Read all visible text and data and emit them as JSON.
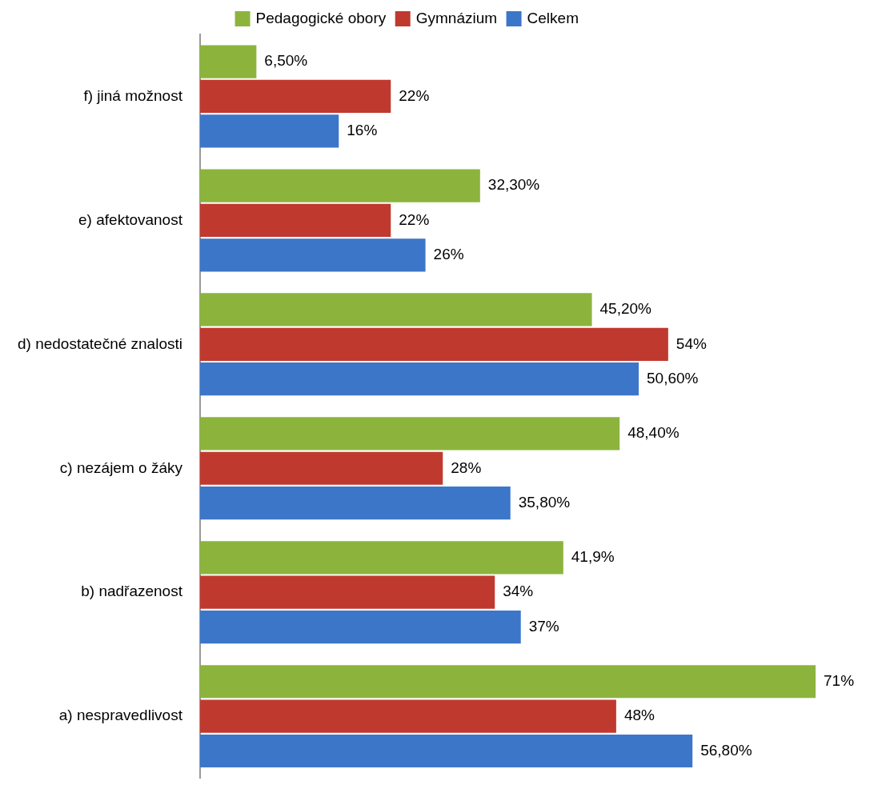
{
  "chart_data": {
    "type": "bar",
    "orientation": "horizontal",
    "categories": [
      "f) jiná možnost",
      "e) afektovanost",
      "d) nedostatečné znalosti",
      "c) nezájem o žáky",
      "b) nadřazenost",
      "a) nespravedlivost"
    ],
    "series": [
      {
        "name": "Pedagogické obory",
        "color": "#8cb43c",
        "values": [
          6.5,
          32.3,
          45.2,
          48.4,
          41.9,
          71
        ],
        "value_labels": [
          "6,50%",
          "32,30%",
          "45,20%",
          "48,40%",
          "41,9%",
          "71%"
        ]
      },
      {
        "name": "Gymnázium",
        "color": "#c0392f",
        "values": [
          22,
          22,
          54,
          28,
          34,
          48
        ],
        "value_labels": [
          "22%",
          "22%",
          "54%",
          "28%",
          "34%",
          "48%"
        ]
      },
      {
        "name": "Celkem",
        "color": "#3c76c8",
        "values": [
          16,
          26,
          50.6,
          35.8,
          37,
          56.8
        ],
        "value_labels": [
          "16%",
          "26%",
          "50,60%",
          "35,80%",
          "37%",
          "56,80%"
        ]
      }
    ],
    "xlim": [
      0,
      71
    ],
    "grid": false,
    "legend": "top",
    "tick_labels": "y"
  }
}
